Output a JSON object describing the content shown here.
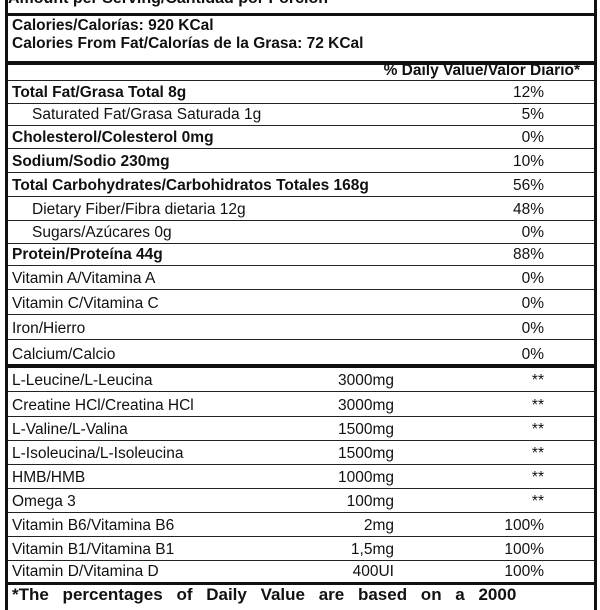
{
  "header": "Amount per Serving/Cantidad por Porción",
  "calories": "Calories/Calorías: 920 KCal",
  "calories_fat": "Calories From Fat/Calorías de la Grasa: 72 KCal",
  "dv_header": "% Daily Value/Valor Diario*",
  "nutrients": [
    {
      "name": "Total Fat/Grasa Total 8g",
      "dv": "12%"
    },
    {
      "name": "Saturated Fat/Grasa Saturada 1g",
      "dv": "5%"
    },
    {
      "name": "Cholesterol/Colesterol 0mg",
      "dv": "0%"
    },
    {
      "name": "Sodium/Sodio 230mg",
      "dv": "10%"
    },
    {
      "name": "Total Carbohydrates/Carbohidratos Totales 168g",
      "dv": "56%"
    },
    {
      "name": "Dietary Fiber/Fibra dietaria 12g",
      "dv": "48%"
    },
    {
      "name": "Sugars/Azúcares 0g",
      "dv": "0%"
    },
    {
      "name": "Protein/Proteína 44g",
      "dv": "88%"
    },
    {
      "name": "Vitamin A/Vitamina A",
      "dv": "0%"
    },
    {
      "name": "Vitamin C/Vitamina C",
      "dv": "0%"
    },
    {
      "name": "Iron/Hierro",
      "dv": "0%"
    },
    {
      "name": "Calcium/Calcio",
      "dv": "0%"
    }
  ],
  "supplements": [
    {
      "name": "L-Leucine/L-Leucina",
      "amount": "3000mg",
      "dv": "**"
    },
    {
      "name": "Creatine HCl/Creatina HCl",
      "amount": "3000mg",
      "dv": "**"
    },
    {
      "name": "L-Valine/L-Valina",
      "amount": "1500mg",
      "dv": "**"
    },
    {
      "name": "L-Isoleucina/L-Isoleucina",
      "amount": "1500mg",
      "dv": "**"
    },
    {
      "name": "HMB/HMB",
      "amount": "1000mg",
      "dv": "**"
    },
    {
      "name": "Omega 3",
      "amount": "100mg",
      "dv": "**"
    },
    {
      "name": "Vitamin B6/Vitamina B6",
      "amount": "2mg",
      "dv": "100%"
    },
    {
      "name": "Vitamin B1/Vitamina B1",
      "amount": "1,5mg",
      "dv": "100%"
    },
    {
      "name": "Vitamin D/Vitamina D",
      "amount": "400UI",
      "dv": "100%"
    }
  ],
  "footnote": "*The percentages of Daily Value are based on a 2000"
}
